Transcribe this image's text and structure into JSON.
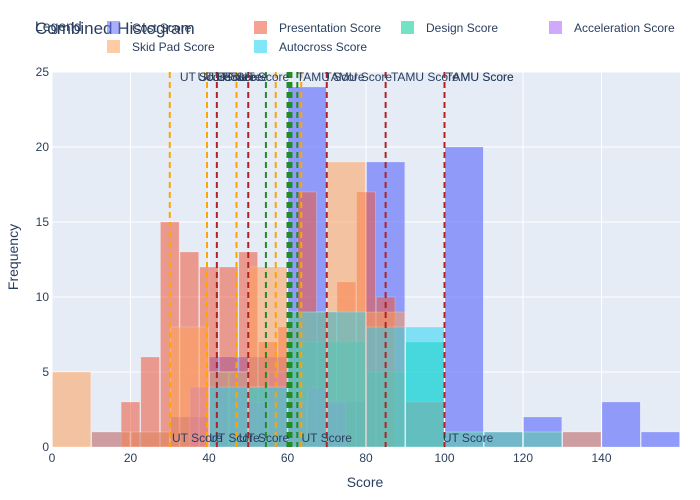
{
  "chart_data": {
    "type": "histogram",
    "title": "Combined Histogram",
    "legend_title": "Legend",
    "xlabel": "Score",
    "ylabel": "Frequency",
    "xlim": [
      0,
      160
    ],
    "ylim": [
      0,
      25
    ],
    "x_ticks": [
      0,
      20,
      40,
      60,
      80,
      100,
      120,
      140
    ],
    "y_ticks": [
      0,
      5,
      10,
      15,
      20,
      25
    ],
    "grid": true,
    "legend_position": "top",
    "series": [
      {
        "name": "Cost Score",
        "color": "#636efa",
        "opacity": 0.65,
        "bins": [
          [
            10,
            20,
            1
          ],
          [
            20,
            30,
            1
          ],
          [
            30,
            40,
            2
          ],
          [
            40,
            50,
            6
          ],
          [
            50,
            60,
            6
          ],
          [
            60,
            70,
            24
          ],
          [
            70,
            80,
            3
          ],
          [
            80,
            90,
            19
          ],
          [
            90,
            100,
            3
          ],
          [
            100,
            110,
            20
          ],
          [
            110,
            120,
            1
          ],
          [
            120,
            130,
            2
          ],
          [
            130,
            140,
            1
          ],
          [
            140,
            150,
            3
          ],
          [
            150,
            160,
            1
          ]
        ]
      },
      {
        "name": "Presentation Score",
        "color": "#ef553b",
        "opacity": 0.55,
        "bins": [
          [
            17.5,
            22.5,
            3
          ],
          [
            22.5,
            27.5,
            6
          ],
          [
            27.5,
            32.5,
            15
          ],
          [
            32.5,
            37.5,
            13
          ],
          [
            37.5,
            42.5,
            12
          ],
          [
            42.5,
            47.5,
            12
          ],
          [
            47.5,
            52.5,
            13
          ],
          [
            52.5,
            57.5,
            7
          ],
          [
            57.5,
            62.5,
            8
          ],
          [
            62.5,
            67.5,
            17
          ],
          [
            67.5,
            72.5,
            9
          ],
          [
            72.5,
            77.5,
            11
          ],
          [
            77.5,
            82.5,
            17
          ],
          [
            82.5,
            87.5,
            10
          ]
        ]
      },
      {
        "name": "Design Score",
        "color": "#00cc96",
        "opacity": 0.5,
        "bins": [
          [
            40,
            50,
            5
          ],
          [
            50,
            60,
            4
          ],
          [
            60,
            70,
            7
          ],
          [
            70,
            80,
            7
          ],
          [
            80,
            90,
            5
          ],
          [
            90,
            100,
            7
          ]
        ]
      },
      {
        "name": "Acceleration Score",
        "color": "#ab63fa",
        "opacity": 0.5,
        "bins": [
          [
            35,
            40,
            4
          ],
          [
            40,
            45,
            5
          ],
          [
            45,
            50,
            5
          ],
          [
            50,
            55,
            3
          ],
          [
            55,
            60,
            5
          ],
          [
            60,
            65,
            3
          ],
          [
            65,
            70,
            4
          ],
          [
            70,
            75,
            3
          ]
        ]
      },
      {
        "name": "Skid Pad Score",
        "color": "#ffa15a",
        "opacity": 0.55,
        "bins": [
          [
            0,
            10,
            5
          ],
          [
            10,
            20,
            1
          ],
          [
            20,
            30,
            1
          ],
          [
            30,
            40,
            8
          ],
          [
            40,
            50,
            5
          ],
          [
            50,
            60,
            12
          ],
          [
            60,
            70,
            9
          ],
          [
            70,
            80,
            19
          ],
          [
            80,
            90,
            9
          ],
          [
            90,
            100,
            3
          ],
          [
            100,
            110,
            1
          ],
          [
            110,
            120,
            1
          ],
          [
            120,
            130,
            1
          ],
          [
            130,
            140,
            1
          ]
        ]
      },
      {
        "name": "Autocross Score",
        "color": "#19d3f3",
        "opacity": 0.5,
        "bins": [
          [
            40,
            50,
            4
          ],
          [
            50,
            60,
            4
          ],
          [
            60,
            70,
            9
          ],
          [
            70,
            80,
            9
          ],
          [
            80,
            90,
            8
          ],
          [
            90,
            100,
            8
          ],
          [
            100,
            110,
            1
          ],
          [
            110,
            120,
            1
          ],
          [
            120,
            130,
            1
          ]
        ]
      }
    ],
    "vlines": [
      {
        "x": 30,
        "color": "#ffa500"
      },
      {
        "x": 39.5,
        "color": "#ffa500"
      },
      {
        "x": 47,
        "color": "#ffa500"
      },
      {
        "x": 57,
        "color": "#ffa500"
      },
      {
        "x": 63.5,
        "color": "#ffa500"
      },
      {
        "x": 42,
        "color": "#b22222"
      },
      {
        "x": 50,
        "color": "#b22222"
      },
      {
        "x": 70,
        "color": "#b22222"
      },
      {
        "x": 85,
        "color": "#b22222"
      },
      {
        "x": 100,
        "color": "#b22222"
      },
      {
        "x": 54.5,
        "color": "#228b22"
      },
      {
        "x": 60,
        "color": "#228b22"
      },
      {
        "x": 60.5,
        "color": "#228b22"
      },
      {
        "x": 61,
        "color": "#228b22"
      },
      {
        "x": 62.5,
        "color": "#228b22"
      }
    ],
    "annotations": [
      {
        "text": "UT Score",
        "x": 39,
        "pos": "top"
      },
      {
        "text": "UT Score",
        "x": 43.5,
        "pos": "top"
      },
      {
        "text": "UT Score",
        "x": 45.5,
        "pos": "top"
      },
      {
        "text": "UT Score",
        "x": 47,
        "pos": "top"
      },
      {
        "text": "UT Score",
        "x": 48.5,
        "pos": "top"
      },
      {
        "text": "UT Score",
        "x": 54,
        "pos": "top"
      },
      {
        "text": "TAMU Score",
        "x": 71,
        "pos": "top"
      },
      {
        "text": "TAMU Score",
        "x": 78,
        "pos": "top"
      },
      {
        "text": "TAMU Score",
        "x": 95,
        "pos": "top"
      },
      {
        "text": "TAMU Score",
        "x": 109,
        "pos": "top"
      },
      {
        "text": "TAMU Score",
        "x": 109,
        "pos": "top"
      },
      {
        "text": "UT Score",
        "x": 37,
        "pos": "bottom"
      },
      {
        "text": "UT Score",
        "x": 46.5,
        "pos": "bottom"
      },
      {
        "text": "UT Score",
        "x": 54,
        "pos": "bottom"
      },
      {
        "text": "UT Score",
        "x": 70,
        "pos": "bottom"
      },
      {
        "text": "UT Score",
        "x": 106,
        "pos": "bottom"
      }
    ]
  }
}
